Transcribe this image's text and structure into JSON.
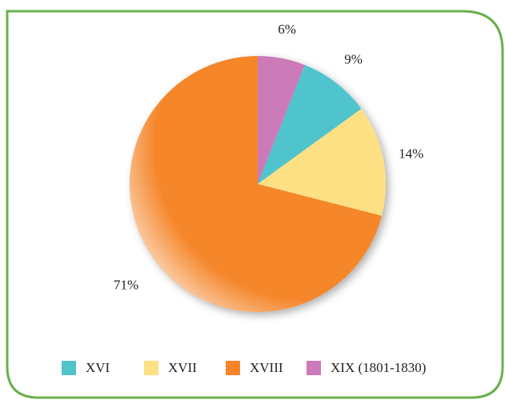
{
  "chart_data": {
    "type": "pie",
    "categories": [
      "XVI",
      "XVII",
      "XVIII",
      "XIX (1801-1830)"
    ],
    "values": [
      9,
      14,
      71,
      6
    ],
    "value_labels": [
      "9%",
      "14%",
      "71%",
      "6%"
    ],
    "colors": [
      "#4fc4cc",
      "#fde083",
      "#f5862a",
      "#cc7ab8"
    ],
    "legend": "bottom"
  }
}
